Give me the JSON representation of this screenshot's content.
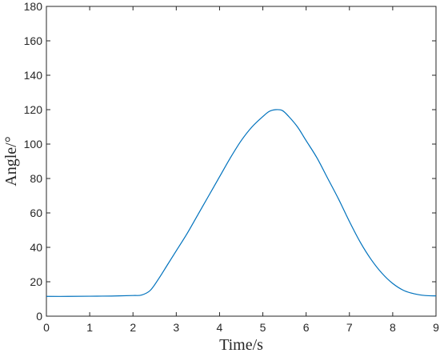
{
  "chart_data": {
    "type": "line",
    "title": "",
    "xlabel": "Time/s",
    "ylabel": "Angle/°",
    "xlim": [
      0,
      9
    ],
    "ylim": [
      0,
      180
    ],
    "xticks": [
      "0",
      "1",
      "2",
      "3",
      "4",
      "5",
      "6",
      "7",
      "8",
      "9"
    ],
    "yticks": [
      "0",
      "20",
      "40",
      "60",
      "80",
      "100",
      "120",
      "140",
      "160",
      "180"
    ],
    "grid": false,
    "box": true,
    "series": [
      {
        "color": "#0072BD",
        "x": [
          0,
          0.5,
          1,
          1.5,
          2,
          2.2,
          2.4,
          2.6,
          2.8,
          3,
          3.25,
          3.5,
          3.75,
          4,
          4.25,
          4.5,
          4.75,
          5,
          5.15,
          5.3,
          5.45,
          5.6,
          5.8,
          6,
          6.25,
          6.5,
          6.75,
          7,
          7.25,
          7.5,
          7.75,
          8,
          8.25,
          8.5,
          8.75,
          9
        ],
        "y": [
          11.5,
          11.5,
          11.6,
          11.7,
          12.0,
          12.3,
          15,
          22,
          30,
          38,
          48,
          59,
          70,
          81,
          92,
          102,
          110,
          116,
          119,
          120,
          119.5,
          116,
          110,
          102,
          92,
          80,
          68,
          55,
          43,
          33,
          25,
          19,
          15,
          13,
          12,
          11.8
        ]
      }
    ]
  }
}
